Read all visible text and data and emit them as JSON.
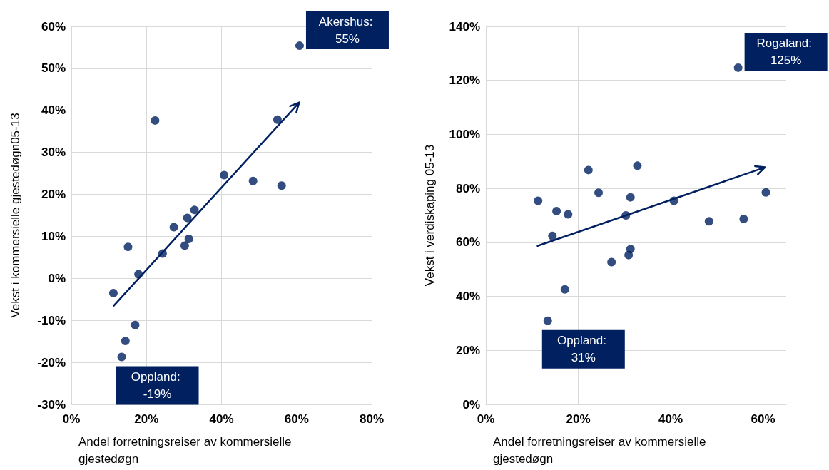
{
  "chart_data": [
    {
      "type": "scatter",
      "ylabel": "Vekst i kommersielle gjestedøgn05-13",
      "xlabel": "Andel forretningsreiser av kommersielle gjestedøgn",
      "marker": "circle",
      "grid": true,
      "xlim": [
        0,
        80
      ],
      "xticks": [
        {
          "value": 0,
          "label": "0%"
        },
        {
          "value": 20,
          "label": "20%"
        },
        {
          "value": 40,
          "label": "40%"
        },
        {
          "value": 60,
          "label": "60%"
        },
        {
          "value": 80,
          "label": "80%"
        }
      ],
      "ylim": [
        -30,
        60
      ],
      "yticks": [
        {
          "value": -30,
          "label": "-30%"
        },
        {
          "value": -20,
          "label": "-20%"
        },
        {
          "value": -10,
          "label": "-10%"
        },
        {
          "value": 0,
          "label": "0%"
        },
        {
          "value": 10,
          "label": "10%"
        },
        {
          "value": 20,
          "label": "20%"
        },
        {
          "value": 30,
          "label": "30%"
        },
        {
          "value": 40,
          "label": "40%"
        },
        {
          "value": 50,
          "label": "50%"
        },
        {
          "value": 60,
          "label": "60%"
        }
      ],
      "series": [
        {
          "type": "scatter",
          "color": "#002060",
          "x": [
            11.2,
            15.1,
            17.9,
            17.0,
            14.4,
            13.4,
            22.3,
            24.3,
            27.3,
            30.2,
            30.9,
            31.3,
            32.8,
            40.7,
            48.4,
            54.9,
            56.0,
            60.8
          ],
          "values": [
            -3.5,
            7.5,
            1.0,
            -11.1,
            -14.9,
            -18.7,
            37.6,
            5.9,
            12.2,
            7.8,
            14.4,
            9.4,
            16.3,
            24.6,
            23.2,
            37.8,
            22.1,
            55.4
          ]
        },
        {
          "type": "line",
          "marker": "none",
          "color": "#002060",
          "x": [
            11.3,
            60.7
          ],
          "values": [
            -6.5,
            41.9
          ]
        }
      ],
      "annotations": [
        {
          "text": "Akershus: 55%",
          "x": 60.8,
          "y": 55.4
        },
        {
          "text": "Oppland: -19%",
          "x": 13.4,
          "y": -18.7
        }
      ]
    },
    {
      "type": "scatter",
      "ylabel": "Vekst i verdiskaping 05-13",
      "xlabel": "Andel forretningsreiser av kommersielle gjestedøgn",
      "marker": "circle",
      "grid": true,
      "xlim": [
        0,
        65
      ],
      "xticks": [
        {
          "value": 0,
          "label": "0%"
        },
        {
          "value": 20,
          "label": "20%"
        },
        {
          "value": 40,
          "label": "40%"
        },
        {
          "value": 60,
          "label": "60%"
        }
      ],
      "ylim": [
        0,
        140
      ],
      "yticks": [
        {
          "value": 0,
          "label": "0%"
        },
        {
          "value": 20,
          "label": "20%"
        },
        {
          "value": 40,
          "label": "40%"
        },
        {
          "value": 60,
          "label": "60%"
        },
        {
          "value": 80,
          "label": "80%"
        },
        {
          "value": 100,
          "label": "100%"
        },
        {
          "value": 120,
          "label": "120%"
        },
        {
          "value": 140,
          "label": "140%"
        }
      ],
      "series": [
        {
          "type": "scatter",
          "color": "#002060",
          "x": [
            11.3,
            15.3,
            17.8,
            14.4,
            22.2,
            24.4,
            32.8,
            31.3,
            30.3,
            40.7,
            48.3,
            55.8,
            60.6,
            31.3,
            30.9,
            27.2,
            17.1,
            13.4,
            54.6
          ],
          "values": [
            75.4,
            71.6,
            70.4,
            62.4,
            86.8,
            78.4,
            88.4,
            76.7,
            70.0,
            75.4,
            67.8,
            68.7,
            78.5,
            57.5,
            55.3,
            52.7,
            42.6,
            31.0,
            124.7
          ]
        },
        {
          "type": "line",
          "marker": "none",
          "color": "#002060",
          "x": [
            11.2,
            60.4
          ],
          "values": [
            58.7,
            87.8
          ]
        }
      ],
      "annotations": [
        {
          "text": "Rogaland: 125%",
          "x": 54.6,
          "y": 124.7
        },
        {
          "text": "Oppland: 31%",
          "x": 13.4,
          "y": 31.0
        }
      ]
    }
  ]
}
